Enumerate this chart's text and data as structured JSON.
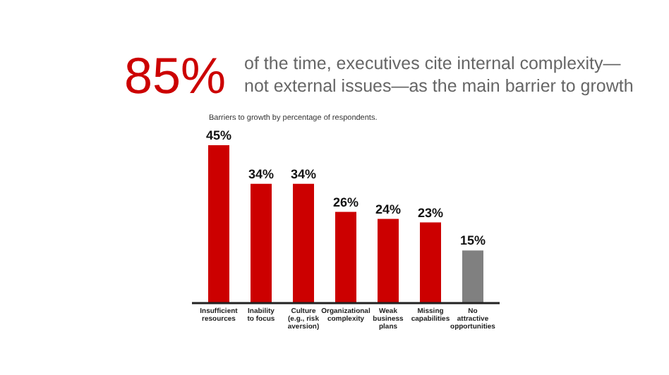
{
  "chart_data": {
    "type": "bar",
    "title": "85%",
    "subtitle": "of the time, executives cite internal complexity— not external issues—as the main barrier to growth",
    "annotations": [
      "Barriers to growth by percentage of respondents."
    ],
    "categories": [
      "Insufficient resources",
      "Inability to focus",
      "Culture (e.g., risk aversion)",
      "Organizational complexity",
      "Weak business plans",
      "Missing capabilities",
      "No attractive opportunities"
    ],
    "values": [
      45,
      34,
      34,
      26,
      24,
      23,
      15
    ],
    "colors": [
      "#cc0000",
      "#cc0000",
      "#cc0000",
      "#cc0000",
      "#cc0000",
      "#cc0000",
      "#808080"
    ],
    "value_labels": [
      "45%",
      "34%",
      "34%",
      "26%",
      "24%",
      "23%",
      "15%"
    ]
  }
}
